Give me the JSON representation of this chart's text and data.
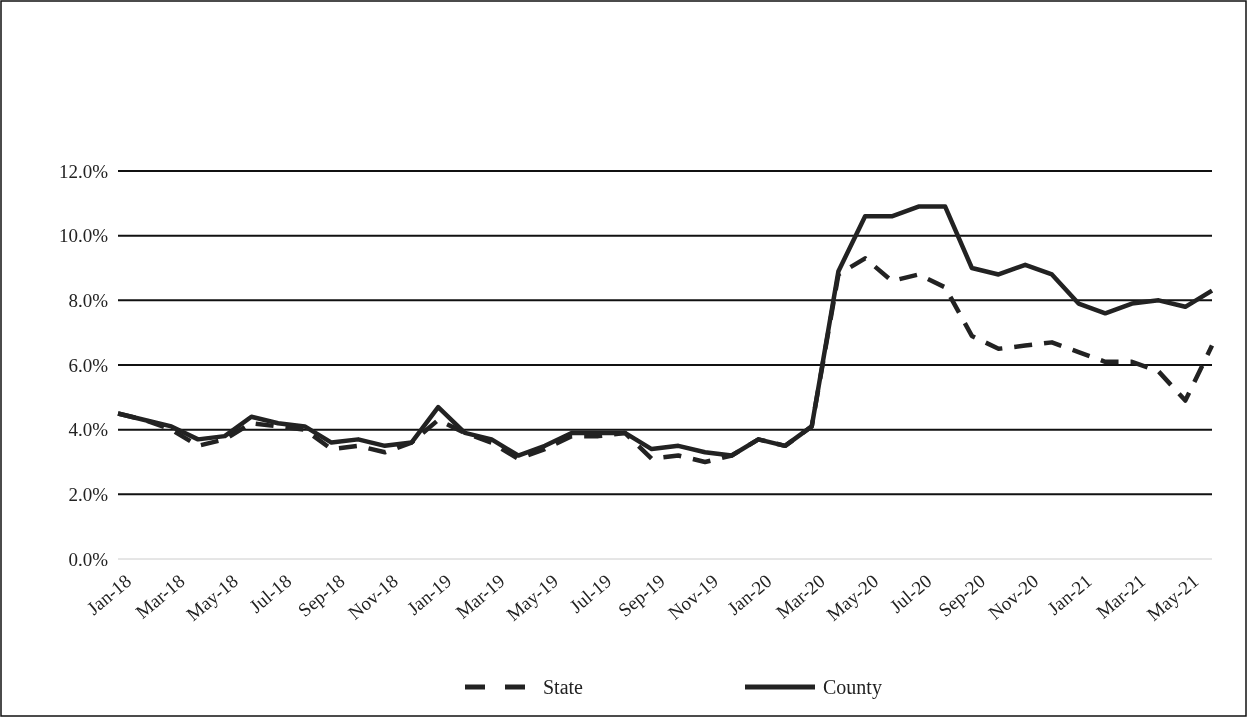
{
  "chart_data": {
    "type": "line",
    "categories": [
      "Jan-18",
      null,
      "Mar-18",
      null,
      "May-18",
      null,
      "Jul-18",
      null,
      "Sep-18",
      null,
      "Nov-18",
      null,
      "Jan-19",
      null,
      "Mar-19",
      null,
      "May-19",
      null,
      "Jul-19",
      null,
      "Sep-19",
      null,
      "Nov-19",
      null,
      "Jan-20",
      null,
      "Mar-20",
      null,
      "May-20",
      null,
      "Jul-20",
      null,
      "Sep-20",
      null,
      "Nov-20",
      null,
      "Jan-21",
      null,
      "Mar-21",
      null,
      "May-21",
      null
    ],
    "series": [
      {
        "name": "State",
        "color": "#222222",
        "line_style": "dashed",
        "values": [
          4.5,
          4.3,
          4.0,
          3.5,
          3.7,
          4.2,
          4.1,
          4.0,
          3.4,
          3.5,
          3.3,
          3.6,
          4.3,
          3.9,
          3.6,
          3.1,
          3.4,
          3.8,
          3.8,
          3.9,
          3.1,
          3.2,
          3.0,
          3.2,
          3.7,
          3.5,
          4.1,
          8.8,
          9.3,
          8.6,
          8.8,
          8.4,
          6.9,
          6.5,
          6.6,
          6.7,
          6.4,
          6.1,
          6.1,
          5.8,
          4.9,
          6.6
        ]
      },
      {
        "name": "County",
        "color": "#222222",
        "line_style": "solid",
        "values": [
          4.5,
          4.3,
          4.1,
          3.7,
          3.8,
          4.4,
          4.2,
          4.1,
          3.6,
          3.7,
          3.5,
          3.6,
          4.7,
          3.9,
          3.7,
          3.2,
          3.5,
          3.9,
          3.9,
          3.9,
          3.4,
          3.5,
          3.3,
          3.2,
          3.7,
          3.5,
          4.1,
          8.9,
          10.6,
          10.6,
          10.9,
          10.9,
          9.0,
          8.8,
          9.1,
          8.8,
          7.9,
          7.6,
          7.9,
          8.0,
          7.8,
          8.3
        ]
      }
    ],
    "ylim": [
      0,
      12
    ],
    "yticks": [
      {
        "value": 0,
        "label": "0.0%"
      },
      {
        "value": 2,
        "label": "2.0%"
      },
      {
        "value": 4,
        "label": "4.0%"
      },
      {
        "value": 6,
        "label": "6.0%"
      },
      {
        "value": 8,
        "label": "8.0%"
      },
      {
        "value": 10,
        "label": "10.0%"
      },
      {
        "value": 12,
        "label": "12.0%"
      }
    ],
    "grid": "y",
    "legend": "bottom",
    "marker": "none"
  }
}
